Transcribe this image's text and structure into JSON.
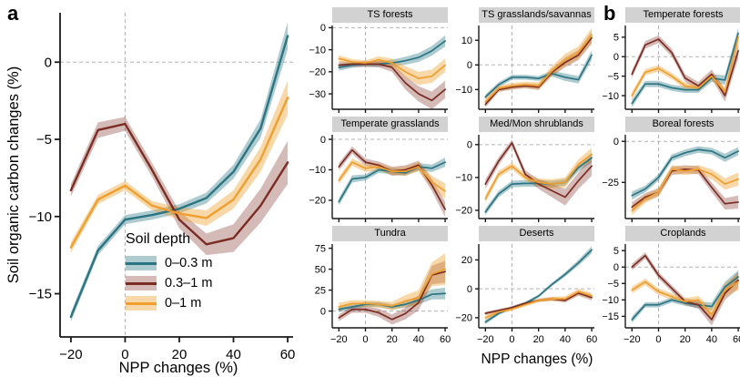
{
  "figure": {
    "panel_a_label": "a",
    "panel_b_label": "b",
    "ylabel_a": "Soil organic carbon changes (%)",
    "xlabel_a": "NPP changes (%)",
    "xlabel_b": "NPP changes (%)"
  },
  "legend": {
    "title": "Soil depth",
    "items": [
      {
        "label": "0–0.3 m",
        "color_key": "teal"
      },
      {
        "label": "0.3–1 m",
        "color_key": "red"
      },
      {
        "label": "0–1 m",
        "color_key": "yellow"
      }
    ]
  },
  "colors": {
    "teal": "#2b7583",
    "red": "#7c2d23",
    "yellow": "#ee9f2f",
    "teal_band": "rgba(43,117,131,0.38)",
    "red_band": "rgba(124,45,35,0.32)",
    "yellow_band": "rgba(238,159,47,0.42)",
    "grid": "#b3b3b3",
    "axis": "#1a1a1a",
    "strip_bg": "#d2d2d2"
  },
  "chart_data": [
    {
      "id": "a",
      "type": "line",
      "title": "",
      "x": [
        -20,
        -10,
        0,
        10,
        20,
        30,
        40,
        50,
        60
      ],
      "xlim": [
        -24,
        62
      ],
      "ylim": [
        -17.8,
        3.2
      ],
      "xticks": [
        -20,
        0,
        20,
        40,
        60
      ],
      "yticks": [
        0,
        -5,
        -10,
        -15
      ],
      "show_x_labels": true,
      "xlabel": "NPP changes (%)",
      "ylabel": "Soil organic carbon changes (%)",
      "series": [
        {
          "name": "0-0.3 m",
          "color": "teal",
          "values": [
            -16.5,
            -12.2,
            -10.2,
            -9.9,
            -9.5,
            -8.8,
            -7.1,
            -4.3,
            1.7
          ],
          "band": [
            0.3,
            0.3,
            0.3,
            0.3,
            0.3,
            0.35,
            0.45,
            0.6,
            0.9
          ]
        },
        {
          "name": "0.3-1 m",
          "color": "red",
          "values": [
            -8.3,
            -4.4,
            -4.0,
            -7.0,
            -10.2,
            -11.8,
            -11.4,
            -9.3,
            -6.5
          ],
          "band": [
            0.4,
            0.5,
            0.45,
            0.45,
            0.55,
            0.7,
            0.9,
            1.1,
            1.4
          ]
        },
        {
          "name": "0-1 m",
          "color": "yellow",
          "values": [
            -12.0,
            -8.9,
            -8.0,
            -9.3,
            -9.8,
            -10.1,
            -8.9,
            -6.3,
            -2.3
          ],
          "band": [
            0.35,
            0.3,
            0.3,
            0.3,
            0.4,
            0.5,
            0.6,
            0.8,
            1.1
          ]
        }
      ]
    },
    {
      "id": "ts-forests",
      "type": "line",
      "title": "TS forests",
      "x": [
        -20,
        -10,
        0,
        10,
        20,
        30,
        40,
        50,
        60
      ],
      "xlim": [
        -25,
        62
      ],
      "ylim": [
        -37,
        1
      ],
      "xticks": [
        -20,
        0,
        20,
        40,
        60
      ],
      "yticks": [
        0,
        -10,
        -20,
        -30
      ],
      "show_x_labels": false,
      "series": [
        {
          "name": "0-0.3 m",
          "color": "teal",
          "values": [
            -18,
            -17,
            -16.5,
            -16.5,
            -16,
            -15,
            -13.5,
            -10.5,
            -6
          ],
          "band": [
            1.5,
            1.2,
            1.2,
            1.2,
            1.5,
            1.8,
            2,
            2.2,
            2.5
          ]
        },
        {
          "name": "0.3-1 m",
          "color": "red",
          "values": [
            -17,
            -16.5,
            -16.5,
            -16.5,
            -18,
            -25,
            -30,
            -33,
            -28
          ],
          "band": [
            1.5,
            1.2,
            1.2,
            1.5,
            2,
            3,
            3.5,
            4,
            4
          ]
        },
        {
          "name": "0-1 m",
          "color": "yellow",
          "values": [
            -14,
            -15.5,
            -16,
            -14.5,
            -16,
            -20,
            -23,
            -22,
            -17
          ],
          "band": [
            1.5,
            1.2,
            1.2,
            1.5,
            2,
            2.5,
            3,
            3,
            3
          ]
        }
      ]
    },
    {
      "id": "ts-grasslands",
      "type": "line",
      "title": "TS grasslands/savannas",
      "x": [
        -20,
        -10,
        0,
        10,
        20,
        30,
        40,
        50,
        60
      ],
      "xlim": [
        -25,
        62
      ],
      "ylim": [
        -18,
        16
      ],
      "xticks": [
        -20,
        0,
        20,
        40,
        60
      ],
      "yticks": [
        10,
        0,
        -10
      ],
      "show_x_labels": false,
      "series": [
        {
          "name": "0-0.3 m",
          "color": "teal",
          "values": [
            -13,
            -8,
            -5,
            -5,
            -5.5,
            -3.5,
            -5,
            -6,
            4
          ],
          "band": [
            1,
            1,
            1,
            1,
            1,
            1.2,
            1.5,
            1.5,
            2
          ]
        },
        {
          "name": "0.3-1 m",
          "color": "red",
          "values": [
            -16,
            -10,
            -9,
            -8.5,
            -9,
            -3,
            1,
            4,
            11
          ],
          "band": [
            1.2,
            1,
            1,
            1,
            1.2,
            1.5,
            2,
            2,
            2.5
          ]
        },
        {
          "name": "0-1 m",
          "color": "yellow",
          "values": [
            -15,
            -9.5,
            -8.5,
            -8,
            -8.5,
            -2.5,
            2,
            5,
            12
          ],
          "band": [
            1.5,
            1.2,
            1.2,
            1.2,
            1.5,
            2,
            2.5,
            2.5,
            3
          ]
        }
      ]
    },
    {
      "id": "temperate-forests",
      "type": "line",
      "title": "Temperate forests",
      "x": [
        -20,
        -10,
        0,
        10,
        20,
        30,
        40,
        50,
        60
      ],
      "xlim": [
        -25,
        62
      ],
      "ylim": [
        -13.5,
        8
      ],
      "xticks": [
        -20,
        0,
        20,
        40,
        60
      ],
      "yticks": [
        5,
        0,
        -5,
        -10
      ],
      "show_x_labels": false,
      "series": [
        {
          "name": "0-0.3 m",
          "color": "teal",
          "values": [
            -12,
            -7,
            -7,
            -8,
            -8.5,
            -8.5,
            -5.5,
            -6,
            6
          ],
          "band": [
            1,
            0.8,
            0.8,
            0.8,
            0.8,
            0.8,
            1,
            1.2,
            1.5
          ]
        },
        {
          "name": "0.3-1 m",
          "color": "red",
          "values": [
            -4.5,
            3,
            4.5,
            1,
            -5.5,
            -7.5,
            -4.5,
            -10,
            1.5
          ],
          "band": [
            1,
            1,
            1,
            1,
            1,
            1,
            1.2,
            1.5,
            2
          ]
        },
        {
          "name": "0-1 m",
          "color": "yellow",
          "values": [
            -10,
            -4,
            -3,
            -5,
            -7.5,
            -8,
            -5,
            -9,
            5
          ],
          "band": [
            1,
            0.8,
            0.8,
            0.8,
            0.8,
            0.8,
            1,
            1.2,
            1.5
          ]
        }
      ]
    },
    {
      "id": "temperate-grasslands",
      "type": "line",
      "title": "Temperate grasslands",
      "x": [
        -20,
        -10,
        0,
        10,
        20,
        30,
        40,
        50,
        60
      ],
      "xlim": [
        -25,
        62
      ],
      "ylim": [
        -26,
        1.5
      ],
      "xticks": [
        -20,
        0,
        20,
        40,
        60
      ],
      "yticks": [
        0,
        -10,
        -20
      ],
      "show_x_labels": false,
      "series": [
        {
          "name": "0-0.3 m",
          "color": "teal",
          "values": [
            -20.5,
            -13,
            -12.5,
            -10,
            -10.5,
            -11,
            -9,
            -9.5,
            -7.5
          ],
          "band": [
            1.2,
            1.2,
            1,
            1,
            1,
            1,
            1.2,
            1.2,
            1.5
          ]
        },
        {
          "name": "0.3-1 m",
          "color": "red",
          "values": [
            -9,
            -3.5,
            -7.5,
            -8.5,
            -10.5,
            -10,
            -8.5,
            -15,
            -23
          ],
          "band": [
            1.2,
            1.2,
            1.2,
            1.2,
            1.5,
            1.5,
            1.5,
            2,
            2.5
          ]
        },
        {
          "name": "0-1 m",
          "color": "yellow",
          "values": [
            -13.5,
            -7.5,
            -9.5,
            -9,
            -10.5,
            -10.5,
            -9,
            -14,
            -17
          ],
          "band": [
            1.2,
            1.2,
            1.2,
            1.2,
            1.2,
            1.5,
            1.5,
            2,
            2.5
          ]
        }
      ]
    },
    {
      "id": "med-mon-shrublands",
      "type": "line",
      "title": "Med/Mon shrublands",
      "x": [
        -20,
        -10,
        0,
        10,
        20,
        30,
        40,
        50,
        60
      ],
      "xlim": [
        -25,
        62
      ],
      "ylim": [
        -22.5,
        3
      ],
      "xticks": [
        -20,
        0,
        20,
        40,
        60
      ],
      "yticks": [
        0,
        -10,
        -20
      ],
      "show_x_labels": false,
      "series": [
        {
          "name": "0-0.3 m",
          "color": "teal",
          "values": [
            -20.5,
            -15,
            -12,
            -11.8,
            -11.8,
            -12,
            -11.5,
            -7,
            -4
          ],
          "band": [
            1,
            1,
            1,
            1,
            1,
            1,
            1,
            1.2,
            1.5
          ]
        },
        {
          "name": "0.3-1 m",
          "color": "red",
          "values": [
            -12,
            -5,
            0.5,
            -9,
            -12,
            -14,
            -16,
            -11,
            -6.5
          ],
          "band": [
            1.5,
            1.2,
            1,
            1.2,
            1.5,
            2,
            2.5,
            2.5,
            3
          ]
        },
        {
          "name": "0-1 m",
          "color": "yellow",
          "values": [
            -16.5,
            -9,
            -6.5,
            -10,
            -11.5,
            -12,
            -11.5,
            -6,
            -3
          ],
          "band": [
            1.2,
            1,
            1,
            1,
            1.2,
            1.5,
            1.5,
            1.5,
            2
          ]
        }
      ]
    },
    {
      "id": "boreal-forests",
      "type": "line",
      "title": "Boreal forests",
      "x": [
        -20,
        -10,
        0,
        10,
        20,
        30,
        40,
        50,
        60
      ],
      "xlim": [
        -25,
        62
      ],
      "ylim": [
        -47,
        4
      ],
      "xticks": [
        -20,
        0,
        20,
        40,
        60
      ],
      "yticks": [
        0,
        -25
      ],
      "show_x_labels": false,
      "series": [
        {
          "name": "0-0.3 m",
          "color": "teal",
          "values": [
            -33,
            -29,
            -22,
            -10,
            -7,
            -5,
            -6,
            -10,
            -6
          ],
          "band": [
            2.5,
            2,
            2,
            2,
            2,
            2,
            2,
            2.5,
            2.5
          ]
        },
        {
          "name": "0.3-1 m",
          "color": "red",
          "values": [
            -40,
            -34,
            -31,
            -18,
            -17,
            -17.5,
            -28,
            -38,
            -37
          ],
          "band": [
            3,
            2.5,
            2.5,
            2.5,
            2.5,
            2.5,
            3,
            3.5,
            4
          ]
        },
        {
          "name": "0-1 m",
          "color": "yellow",
          "values": [
            -42,
            -35,
            -31,
            -17,
            -18,
            -17,
            -20,
            -26,
            -23
          ],
          "band": [
            3,
            2.5,
            2.5,
            2.5,
            2.5,
            2.5,
            3,
            3.5,
            4
          ]
        }
      ]
    },
    {
      "id": "tundra",
      "type": "line",
      "title": "Tundra",
      "x": [
        -20,
        -10,
        0,
        10,
        20,
        30,
        40,
        50,
        60
      ],
      "xlim": [
        -25,
        62
      ],
      "ylim": [
        -20,
        80
      ],
      "xticks": [
        -20,
        0,
        20,
        40,
        60
      ],
      "yticks": [
        75,
        50,
        25,
        0
      ],
      "show_x_labels": true,
      "series": [
        {
          "name": "0-0.3 m",
          "color": "teal",
          "values": [
            2,
            5,
            8,
            8,
            5,
            8,
            13,
            20,
            21
          ],
          "band": [
            3,
            3,
            3,
            3,
            3,
            4,
            5,
            6,
            7
          ]
        },
        {
          "name": "0.3-1 m",
          "color": "red",
          "values": [
            -8,
            2,
            2,
            -2,
            -10,
            -3,
            10,
            43,
            47
          ],
          "band": [
            4,
            4,
            4,
            5,
            6,
            7,
            9,
            11,
            13
          ]
        },
        {
          "name": "0-1 m",
          "color": "yellow",
          "values": [
            5,
            9,
            9,
            8,
            6,
            12,
            16,
            44,
            50
          ],
          "band": [
            5,
            4,
            4,
            4,
            5,
            7,
            9,
            14,
            19
          ]
        }
      ]
    },
    {
      "id": "deserts",
      "type": "line",
      "title": "Deserts",
      "x": [
        -20,
        -10,
        0,
        10,
        20,
        30,
        40,
        50,
        60
      ],
      "xlim": [
        -25,
        62
      ],
      "ylim": [
        -27,
        31
      ],
      "xticks": [
        -20,
        0,
        20,
        40,
        60
      ],
      "yticks": [
        20,
        0,
        -20
      ],
      "show_x_labels": true,
      "series": [
        {
          "name": "0-0.3 m",
          "color": "teal",
          "values": [
            -23,
            -17,
            -13,
            -10,
            -5,
            3,
            10,
            18,
            27
          ],
          "band": [
            1.5,
            1.2,
            1,
            1,
            1,
            1.2,
            1.5,
            2,
            2.5
          ]
        },
        {
          "name": "0.3-1 m",
          "color": "red",
          "values": [
            -17,
            -15,
            -13,
            -10,
            -8,
            -7,
            -8,
            -3,
            -6
          ],
          "band": [
            1.2,
            1,
            1,
            1,
            1,
            1.2,
            1.5,
            1.8,
            2
          ]
        },
        {
          "name": "0-1 m",
          "color": "yellow",
          "values": [
            -20,
            -16,
            -14,
            -11,
            -8,
            -7,
            -7,
            -2,
            -5
          ],
          "band": [
            1.5,
            1.2,
            1.2,
            1.2,
            1.2,
            1.5,
            1.8,
            2,
            2.2
          ]
        }
      ]
    },
    {
      "id": "croplands",
      "type": "line",
      "title": "Croplands",
      "x": [
        -20,
        -10,
        0,
        10,
        20,
        30,
        40,
        50,
        60
      ],
      "xlim": [
        -25,
        62
      ],
      "ylim": [
        -18.5,
        7
      ],
      "xticks": [
        -20,
        0,
        20,
        40,
        60
      ],
      "yticks": [
        5,
        0,
        -5,
        -10,
        -15
      ],
      "show_x_labels": true,
      "series": [
        {
          "name": "0-0.3 m",
          "color": "teal",
          "values": [
            -16,
            -11.5,
            -11.5,
            -10,
            -11,
            -11.5,
            -12,
            -6,
            -3
          ],
          "band": [
            1,
            0.8,
            0.8,
            0.8,
            0.8,
            1,
            1.2,
            1.5,
            2
          ]
        },
        {
          "name": "0.3-1 m",
          "color": "red",
          "values": [
            0,
            3.5,
            -2.5,
            -6.5,
            -10.5,
            -11.5,
            -16,
            -8,
            -4
          ],
          "band": [
            1,
            1,
            1,
            1,
            1,
            1.2,
            1.8,
            2,
            2.5
          ]
        },
        {
          "name": "0-1 m",
          "color": "yellow",
          "values": [
            -7,
            -4.5,
            -7.5,
            -9,
            -10.5,
            -10,
            -14.5,
            -7,
            -4.5
          ],
          "band": [
            1,
            1,
            1,
            1,
            1,
            1.2,
            1.8,
            2,
            2.5
          ]
        }
      ]
    }
  ]
}
